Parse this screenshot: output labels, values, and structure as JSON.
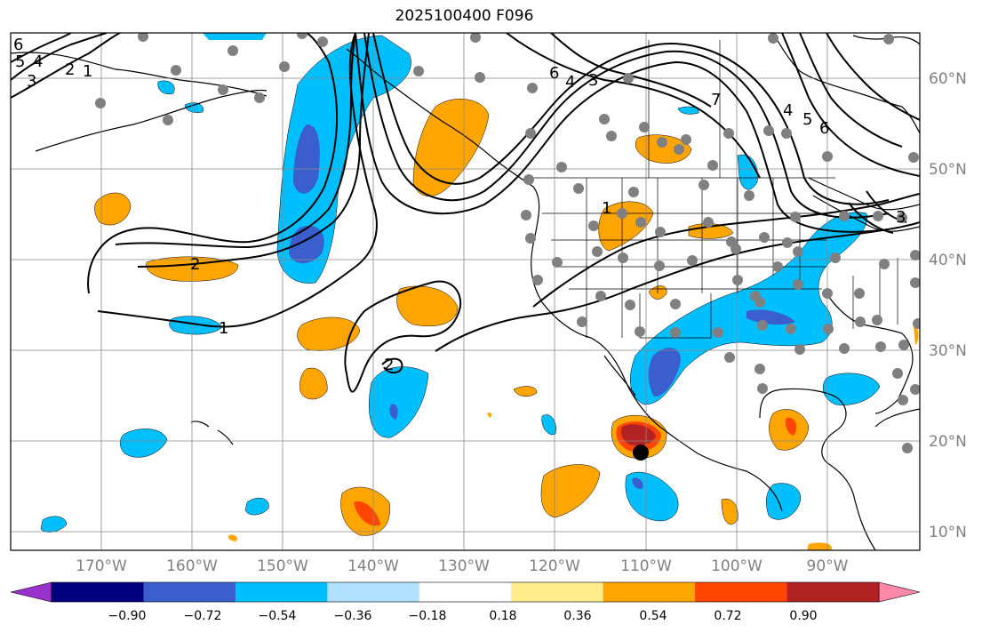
{
  "title": "2025100400 F096",
  "map": {
    "lat_ticks": [
      "60°N",
      "50°N",
      "40°N",
      "30°N",
      "20°N",
      "10°N"
    ],
    "lon_ticks": [
      "170°W",
      "160°W",
      "150°W",
      "140°W",
      "130°W",
      "120°W",
      "110°W",
      "100°W",
      "90°W"
    ],
    "contour_labels": [
      "6",
      "5",
      "4",
      "3",
      "2",
      "1",
      "2",
      "1",
      "7",
      "6",
      "4",
      "3",
      "4",
      "5",
      "6",
      "1",
      "3",
      "2"
    ]
  },
  "colorbar": {
    "ticks": [
      "−0.90",
      "−0.72",
      "−0.54",
      "−0.36",
      "−0.18",
      "0.18",
      "0.36",
      "0.54",
      "0.72",
      "0.90"
    ],
    "colors": [
      "#9932cc",
      "#000080",
      "#3a5fcd",
      "#00bfff",
      "#b0e2ff",
      "#ffffff",
      "#ffec8b",
      "#ffa500",
      "#ff4500",
      "#b22222",
      "#ff88aa"
    ]
  }
}
